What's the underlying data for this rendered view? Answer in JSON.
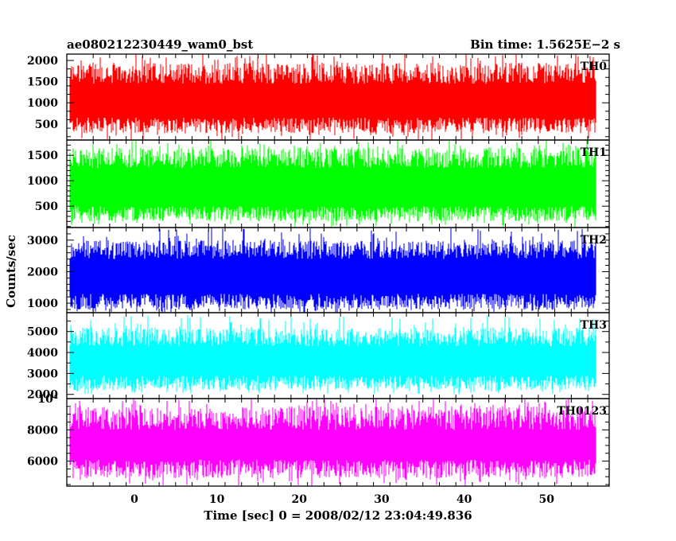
{
  "chart_data": {
    "type": "line",
    "title_left": "ae080212230449_wam0_bst",
    "title_right": "Bin time: 1.5625E−2 s",
    "xlabel": "Time [sec] 0 = 2008/02/12 23:04:49.836",
    "ylabel": "Counts/sec",
    "xlim": [
      -8.2,
      57.6
    ],
    "data_x_range": [
      -7.8,
      56.0
    ],
    "x_ticks": [
      0,
      10,
      20,
      30,
      40,
      50
    ],
    "x_tick_labels": [
      "0",
      "10",
      "20",
      "30",
      "40",
      "50"
    ],
    "grid": false,
    "series": [
      {
        "name": "TH0",
        "color": "#ff0000",
        "ylim": [
          120,
          2150
        ],
        "y_ticks": [
          500,
          1000,
          1500,
          2000
        ],
        "y_tick_labels": [
          "500",
          "1000",
          "1500",
          "2000"
        ],
        "mean": 1050,
        "low_min": 120,
        "low_typ": [
          280,
          650
        ],
        "high_typ": [
          1450,
          1950
        ],
        "high_max": 2150
      },
      {
        "name": "TH1",
        "color": "#00ff00",
        "ylim": [
          80,
          1800
        ],
        "y_ticks": [
          500,
          1000,
          1500
        ],
        "y_tick_labels": [
          "500",
          "1000",
          "1500"
        ],
        "mean": 900,
        "low_min": 80,
        "low_typ": [
          200,
          500
        ],
        "high_typ": [
          1250,
          1650
        ],
        "high_max": 1800
      },
      {
        "name": "TH2",
        "color": "#0000ff",
        "ylim": [
          700,
          3400
        ],
        "y_ticks": [
          1000,
          2000,
          3000
        ],
        "y_tick_labels": [
          "1000",
          "2000",
          "3000"
        ],
        "mean": 1750,
        "low_min": 700,
        "low_typ": [
          800,
          1300
        ],
        "high_typ": [
          2400,
          3000
        ],
        "high_max": 3400
      },
      {
        "name": "TH3",
        "color": "#00ffff",
        "ylim": [
          1800,
          5900
        ],
        "y_ticks": [
          2000,
          3000,
          4000,
          5000
        ],
        "y_tick_labels": [
          "2000",
          "3000",
          "4000",
          "5000"
        ],
        "mean": 3450,
        "low_min": 2000,
        "low_typ": [
          2200,
          2900
        ],
        "high_typ": [
          4300,
          5200
        ],
        "high_max": 5800
      },
      {
        "name": "TH0123",
        "color": "#ff00ff",
        "ylim": [
          4400,
          10000
        ],
        "y_ticks": [
          6000,
          8000,
          10000
        ],
        "y_tick_labels": [
          "6000",
          "8000",
          "10⁴"
        ],
        "mean": 7000,
        "low_min": 4400,
        "low_typ": [
          4900,
          6100
        ],
        "high_typ": [
          8000,
          9500
        ],
        "high_max": 10000
      }
    ]
  }
}
